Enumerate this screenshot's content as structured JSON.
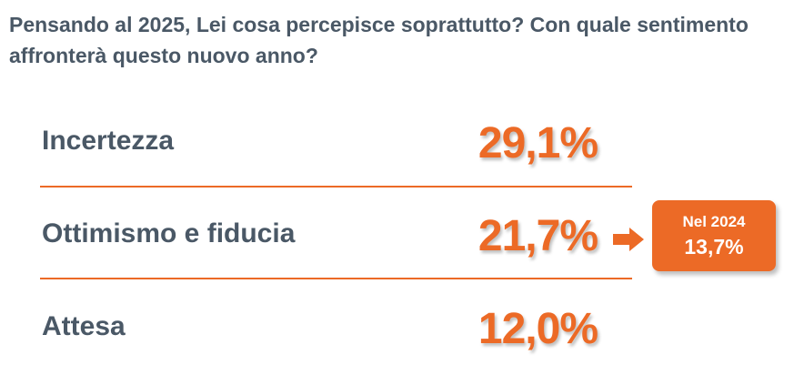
{
  "chart_data": {
    "type": "table",
    "title": "Pensando al 2025, Lei cosa percepisce soprattutto? Con quale sentimento affronterà questo nuovo anno?",
    "rows": [
      {
        "label": "Incertezza",
        "value": 29.1,
        "display": "29,1%"
      },
      {
        "label": "Ottimismo e fiducia",
        "value": 21.7,
        "display": "21,7%"
      },
      {
        "label": "Attesa",
        "value": 12.0,
        "display": "12,0%"
      }
    ],
    "comparison": {
      "row": "Ottimismo e fiducia",
      "label": "Nel 2024",
      "value": 13.7,
      "display": "13,7%"
    }
  },
  "colors": {
    "accent": "#ec6a26",
    "text": "#4a5866"
  },
  "icons": {
    "comparison_arrow": "arrow-right-icon"
  }
}
